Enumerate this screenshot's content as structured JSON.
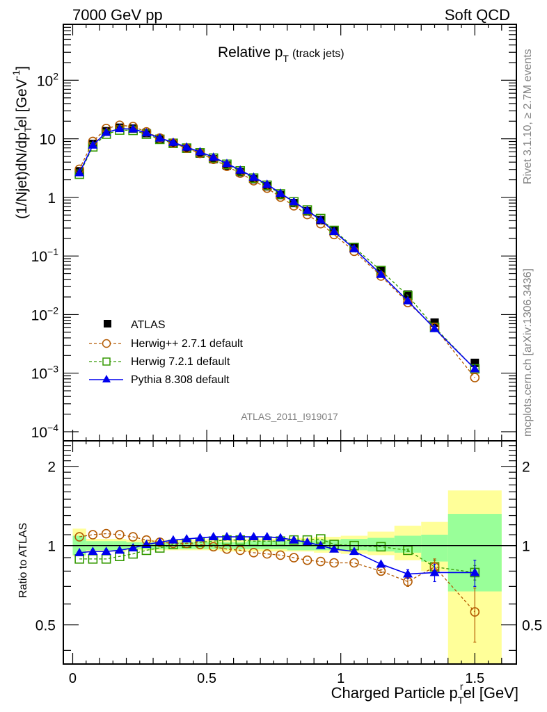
{
  "chart_data": [
    {
      "type": "line",
      "panel": "main",
      "title": "Relative p_T",
      "title_main": "Relative p",
      "title_sub": "T",
      "title_suffix": "(track jets)",
      "top_left_label": "7000 GeV pp",
      "top_right_label": "Soft QCD",
      "ylabel": "(1/Njet)dN/dp_T^rel [GeV^-1]",
      "ylabel_parts": {
        "a": "(1/Njet)dN/dp",
        "sub": "T",
        "sup": "r",
        "b": "el [GeV",
        "unit_sup": "-1",
        "c": "]"
      },
      "yscale": "log",
      "ylim": [
        7e-05,
        900
      ],
      "xlim": [
        -0.035,
        1.655
      ],
      "ytick_labels": [
        {
          "value": 100,
          "base": "10",
          "exp": "2"
        },
        {
          "value": 10,
          "base": "10",
          "exp": ""
        },
        {
          "value": 1,
          "base": "1",
          "exp": ""
        },
        {
          "value": 0.1,
          "base": "10",
          "exp": "−1"
        },
        {
          "value": 0.01,
          "base": "10",
          "exp": "−2"
        },
        {
          "value": 0.001,
          "base": "10",
          "exp": "−3"
        },
        {
          "value": 0.0001,
          "base": "10",
          "exp": "−4"
        }
      ],
      "x": [
        0.025,
        0.075,
        0.125,
        0.175,
        0.225,
        0.275,
        0.325,
        0.375,
        0.425,
        0.475,
        0.525,
        0.575,
        0.625,
        0.675,
        0.725,
        0.775,
        0.825,
        0.875,
        0.925,
        0.975,
        1.05,
        1.15,
        1.25,
        1.35,
        1.5
      ],
      "xerr_edges": [
        0.0,
        0.05,
        0.1,
        0.15,
        0.2,
        0.25,
        0.3,
        0.35,
        0.4,
        0.45,
        0.5,
        0.55,
        0.6,
        0.65,
        0.7,
        0.75,
        0.8,
        0.85,
        0.9,
        0.95,
        1.0,
        1.1,
        1.2,
        1.3,
        1.4,
        1.6
      ],
      "series": [
        {
          "name": "ATLAS",
          "key": "atlas",
          "color": "#000000",
          "marker": "square-filled",
          "line": "none",
          "values": [
            2.8,
            8.2,
            13.5,
            15.5,
            15.0,
            12.5,
            10.0,
            8.3,
            6.8,
            5.6,
            4.5,
            3.5,
            2.7,
            2.05,
            1.55,
            1.1,
            0.8,
            0.58,
            0.41,
            0.27,
            0.14,
            0.057,
            0.022,
            0.0073,
            0.0015
          ]
        },
        {
          "name": "Herwig++ 2.7.1 default",
          "key": "herwigpp",
          "color": "#b35900",
          "marker": "circle-open",
          "line": "dashed"
        },
        {
          "name": "Herwig 7.2.1 default",
          "key": "herwig7",
          "color": "#339900",
          "marker": "square-open",
          "line": "dashed"
        },
        {
          "name": "Pythia 8.308 default",
          "key": "pythia",
          "color": "#0000ee",
          "marker": "triangle-filled",
          "line": "solid"
        }
      ],
      "legend_position": "lower-left",
      "analysis_label": "ATLAS_2011_I919017",
      "side_label_1": "Rivet 3.1.10, ≥ 2.7M events",
      "side_label_2": "mcplots.cern.ch [arXiv:1306.3436]"
    },
    {
      "type": "line",
      "panel": "ratio",
      "ylabel": "Ratio to ATLAS",
      "yscale": "log",
      "ylim": [
        0.355,
        2.5
      ],
      "xlabel": "Charged Particle p_T^rel [GeV]",
      "xlabel_parts": {
        "a": "Charged Particle p",
        "sub": "T",
        "sup": "r",
        "b": "el [GeV]"
      },
      "xtick_labels": [
        {
          "value": 0,
          "label": "0"
        },
        {
          "value": 0.5,
          "label": "0.5"
        },
        {
          "value": 1,
          "label": "1"
        },
        {
          "value": 1.5,
          "label": "1.5"
        }
      ],
      "ytick_labels": [
        {
          "value": 2,
          "label": "2"
        },
        {
          "value": 1,
          "label": "1"
        },
        {
          "value": 0.5,
          "label": "0.5"
        }
      ],
      "band_inner": {
        "color": "#99ff99",
        "low": [
          0.92,
          0.96,
          0.96,
          0.96,
          0.97,
          0.97,
          0.97,
          0.97,
          0.97,
          0.97,
          0.97,
          0.97,
          0.97,
          0.97,
          0.97,
          0.97,
          0.96,
          0.96,
          0.96,
          0.96,
          0.96,
          0.95,
          0.94,
          0.87,
          0.67
        ],
        "high": [
          1.09,
          1.04,
          1.04,
          1.04,
          1.03,
          1.03,
          1.03,
          1.03,
          1.03,
          1.03,
          1.03,
          1.03,
          1.03,
          1.04,
          1.04,
          1.04,
          1.04,
          1.04,
          1.05,
          1.05,
          1.06,
          1.07,
          1.09,
          1.1,
          1.32
        ]
      },
      "band_outer": {
        "color": "#ffff99",
        "low": [
          0.91,
          0.95,
          0.95,
          0.95,
          0.96,
          0.96,
          0.96,
          0.96,
          0.96,
          0.96,
          0.96,
          0.95,
          0.95,
          0.95,
          0.95,
          0.95,
          0.95,
          0.95,
          0.94,
          0.94,
          0.93,
          0.92,
          0.88,
          0.8,
          0.355
        ],
        "high": [
          1.16,
          1.06,
          1.06,
          1.06,
          1.05,
          1.05,
          1.05,
          1.05,
          1.05,
          1.05,
          1.06,
          1.06,
          1.06,
          1.06,
          1.06,
          1.06,
          1.07,
          1.07,
          1.08,
          1.08,
          1.09,
          1.13,
          1.19,
          1.23,
          1.62
        ]
      },
      "series": [
        {
          "name": "Herwig++ 2.7.1 default",
          "key": "herwigpp",
          "color": "#b35900",
          "values": [
            1.08,
            1.1,
            1.11,
            1.1,
            1.08,
            1.05,
            1.03,
            1.02,
            1.02,
            1.01,
            0.99,
            0.97,
            0.96,
            0.94,
            0.93,
            0.92,
            0.9,
            0.88,
            0.87,
            0.86,
            0.86,
            0.8,
            0.73,
            0.83,
            0.56
          ],
          "err": [
            0,
            0,
            0,
            0,
            0,
            0,
            0,
            0,
            0,
            0,
            0,
            0,
            0,
            0,
            0,
            0,
            0,
            0,
            0,
            0,
            0,
            0.01,
            0.03,
            0.06,
            0.13
          ]
        },
        {
          "name": "Herwig 7.2.1 default",
          "key": "herwig7",
          "color": "#339900",
          "values": [
            0.89,
            0.89,
            0.89,
            0.91,
            0.93,
            0.96,
            0.98,
            1.01,
            1.02,
            1.03,
            1.04,
            1.05,
            1.05,
            1.04,
            1.04,
            1.04,
            1.05,
            1.05,
            1.06,
            1.01,
            1.0,
            0.99,
            0.96,
            0.83,
            0.79
          ],
          "err": [
            0,
            0,
            0,
            0,
            0,
            0,
            0,
            0,
            0,
            0,
            0,
            0,
            0,
            0,
            0,
            0,
            0,
            0,
            0,
            0,
            0,
            0,
            0.01,
            0.05,
            0.05
          ]
        },
        {
          "name": "Pythia 8.308 default",
          "key": "pythia",
          "color": "#0000ee",
          "values": [
            0.94,
            0.95,
            0.95,
            0.96,
            0.98,
            1.01,
            1.03,
            1.05,
            1.06,
            1.07,
            1.08,
            1.08,
            1.08,
            1.08,
            1.08,
            1.07,
            1.05,
            1.03,
            1.0,
            0.97,
            0.95,
            0.85,
            0.78,
            0.79,
            0.79
          ],
          "err": [
            0,
            0,
            0,
            0,
            0,
            0,
            0,
            0,
            0,
            0,
            0,
            0,
            0,
            0,
            0,
            0,
            0,
            0,
            0,
            0,
            0,
            0.015,
            0.03,
            0.06,
            0.09
          ]
        }
      ]
    }
  ]
}
